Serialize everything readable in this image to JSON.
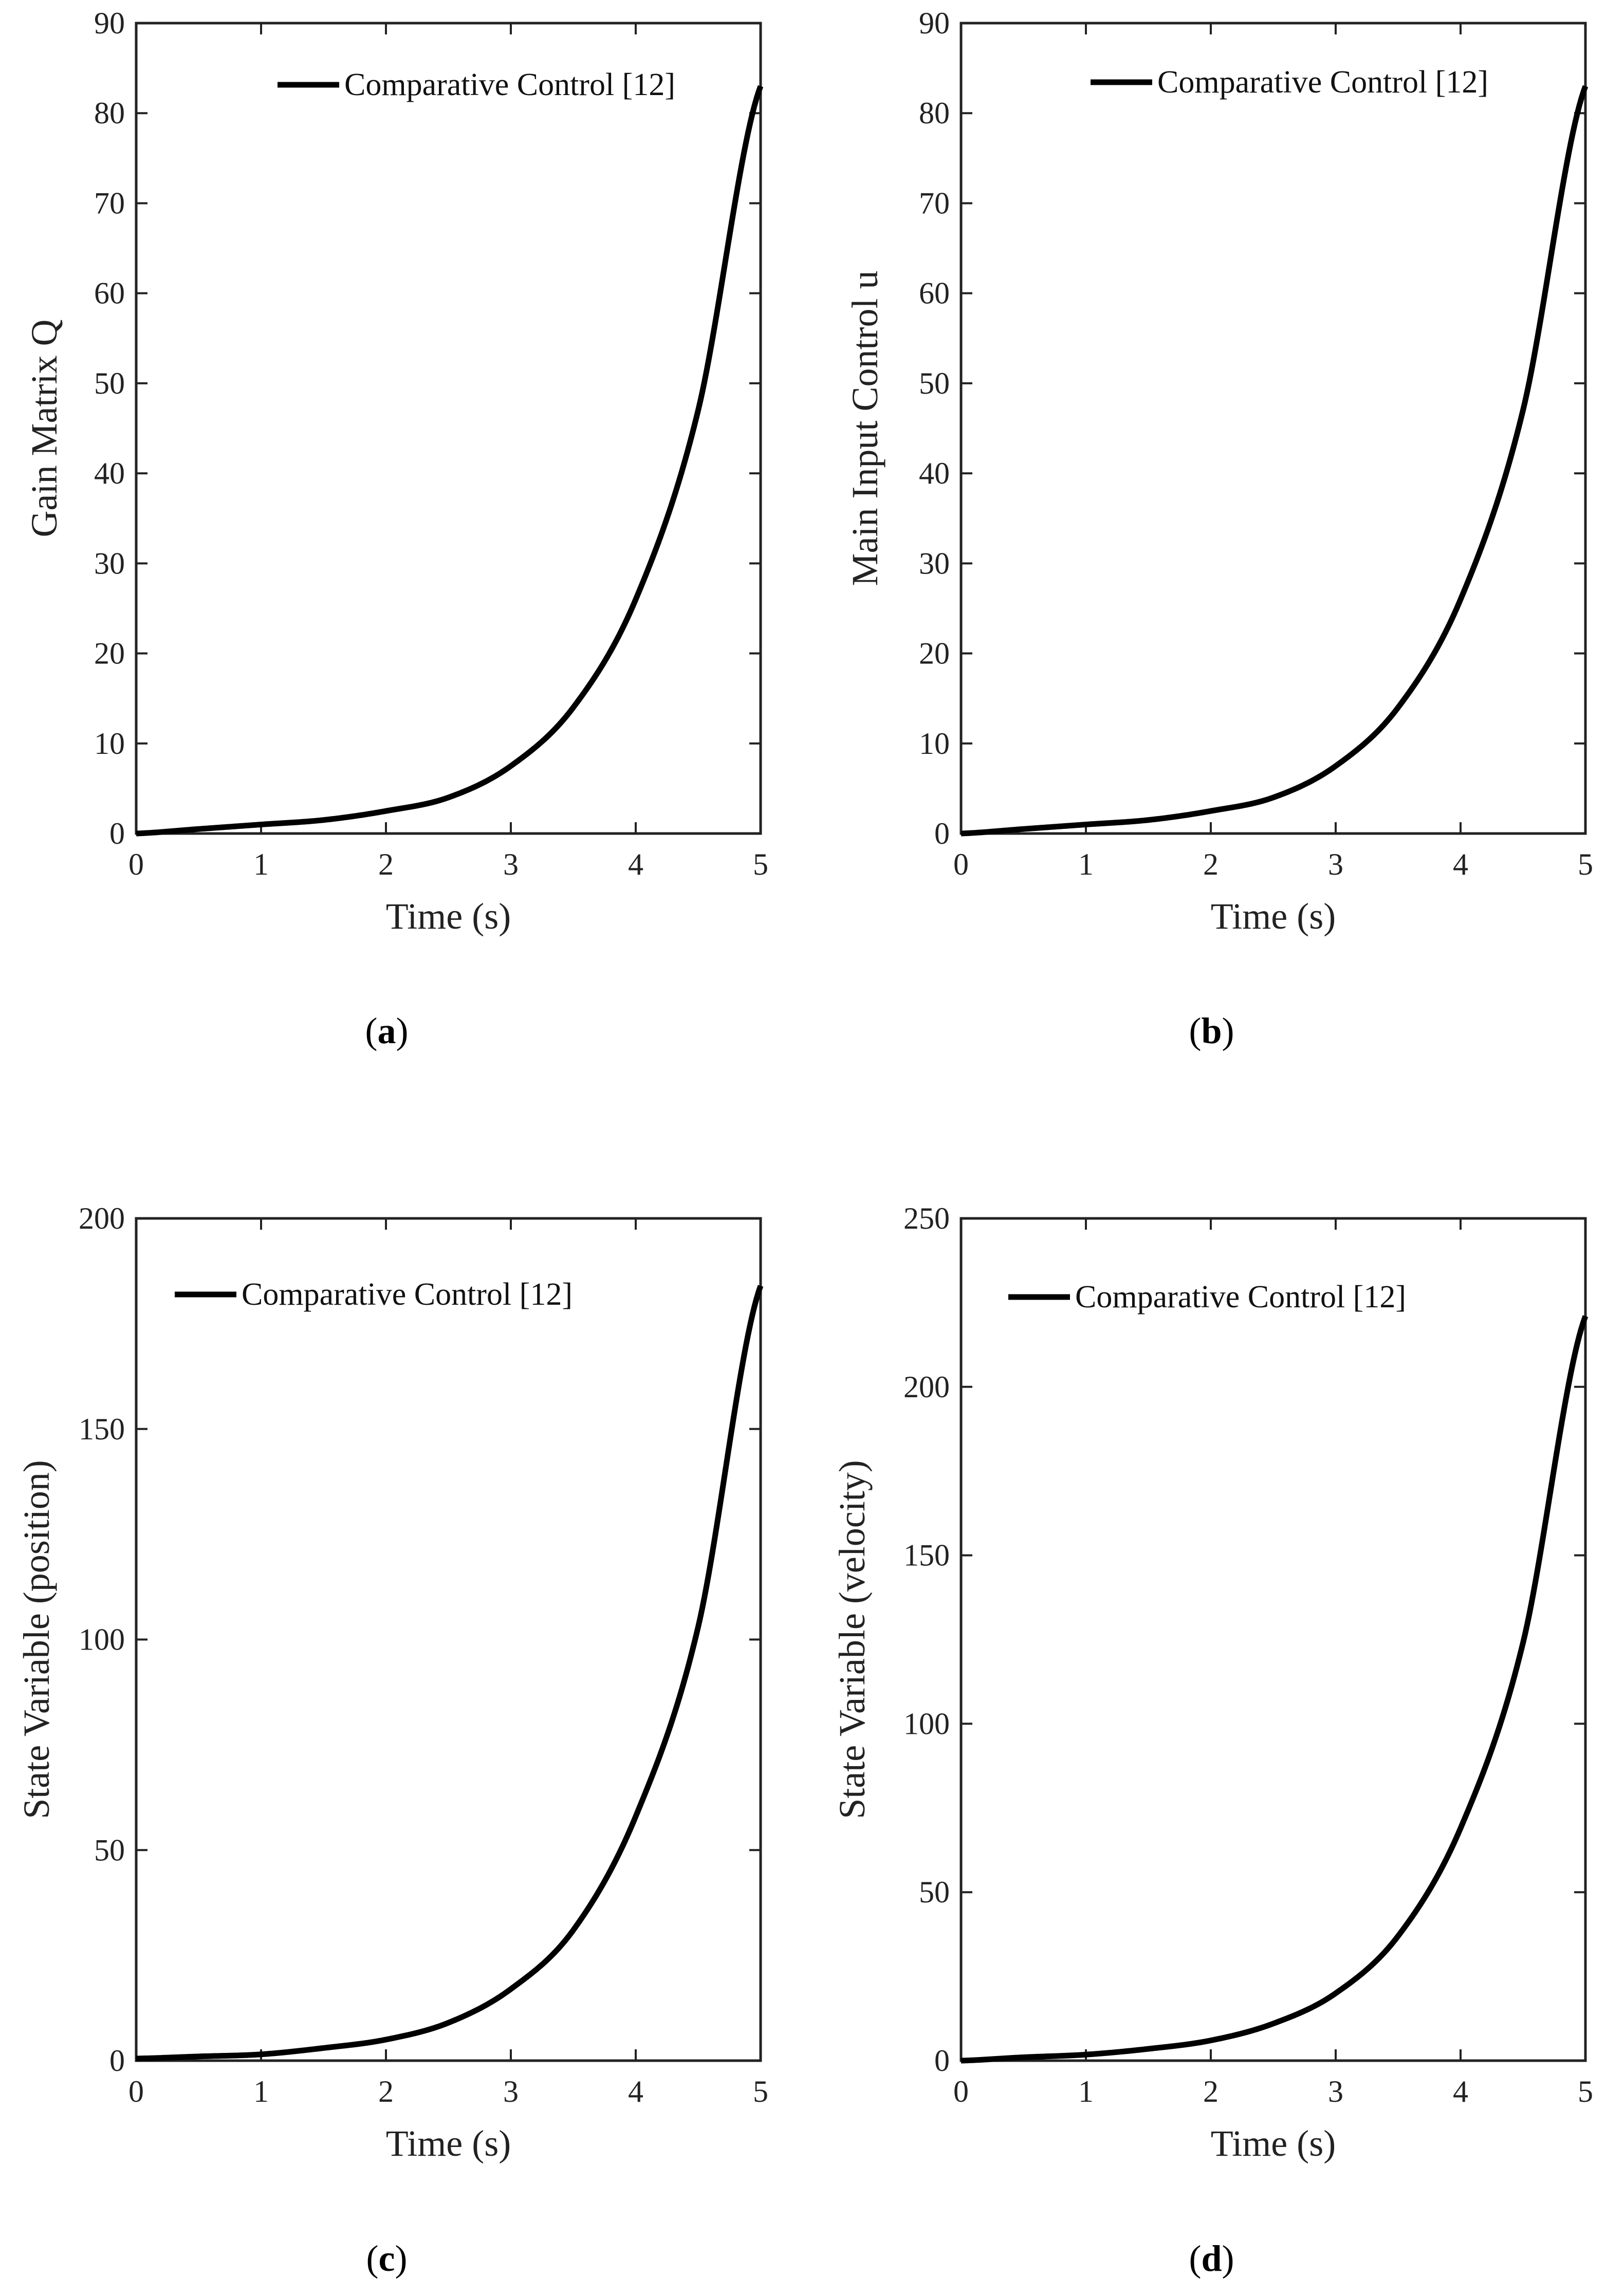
{
  "chart_data": [
    {
      "type": "line",
      "caption_letter": "a",
      "xlabel": "Time (s)",
      "ylabel": "Gain Matrix Q",
      "xlim": [
        0,
        5
      ],
      "ylim": [
        0,
        90
      ],
      "xticks": [
        "0",
        "1",
        "2",
        "3",
        "4",
        "5"
      ],
      "yticks": [
        "0",
        "10",
        "20",
        "30",
        "40",
        "50",
        "60",
        "70",
        "80",
        "90"
      ],
      "legend_position": "top-right",
      "series": [
        {
          "name": "Comparative Control [12]",
          "color": "#000000",
          "x": [
            0,
            0.5,
            1,
            1.5,
            2,
            2.5,
            3,
            3.5,
            4,
            4.5,
            5
          ],
          "y": [
            0,
            0.5,
            1.0,
            1.5,
            2.5,
            4.0,
            7.5,
            14.0,
            26.0,
            47.0,
            83.0
          ]
        }
      ]
    },
    {
      "type": "line",
      "caption_letter": "b",
      "xlabel": "Time (s)",
      "ylabel": "Main Input Control u",
      "xlim": [
        0,
        5
      ],
      "ylim": [
        0,
        90
      ],
      "xticks": [
        "0",
        "1",
        "2",
        "3",
        "4",
        "5"
      ],
      "yticks": [
        "0",
        "10",
        "20",
        "30",
        "40",
        "50",
        "60",
        "70",
        "80",
        "90"
      ],
      "legend_position": "top-right",
      "series": [
        {
          "name": "Comparative Control [12]",
          "color": "#000000",
          "x": [
            0,
            0.5,
            1,
            1.5,
            2,
            2.5,
            3,
            3.5,
            4,
            4.5,
            5
          ],
          "y": [
            0,
            0.5,
            1.0,
            1.5,
            2.5,
            4.0,
            7.5,
            14.0,
            26.0,
            47.0,
            83.0
          ]
        }
      ]
    },
    {
      "type": "line",
      "caption_letter": "c",
      "xlabel": "Time (s)",
      "ylabel": "State Variable (position)",
      "xlim": [
        0,
        5
      ],
      "ylim": [
        0,
        200
      ],
      "xticks": [
        "0",
        "1",
        "2",
        "3",
        "4",
        "5"
      ],
      "yticks": [
        "0",
        "50",
        "100",
        "150",
        "200"
      ],
      "legend_position": "top-left",
      "series": [
        {
          "name": "Comparative Control [12]",
          "color": "#000000",
          "x": [
            0,
            0.5,
            1,
            1.5,
            2,
            2.5,
            3,
            3.5,
            4,
            4.5,
            5
          ],
          "y": [
            0.5,
            1.0,
            1.5,
            3.0,
            5.0,
            9.0,
            17.0,
            31.0,
            58.0,
            103.0,
            184.0
          ]
        }
      ]
    },
    {
      "type": "line",
      "caption_letter": "d",
      "xlabel": "Time (s)",
      "ylabel": "State Variable (velocity)",
      "xlim": [
        0,
        5
      ],
      "ylim": [
        0,
        250
      ],
      "xticks": [
        "0",
        "1",
        "2",
        "3",
        "4",
        "5"
      ],
      "yticks": [
        "0",
        "50",
        "100",
        "150",
        "200",
        "250"
      ],
      "legend_position": "top-right",
      "series": [
        {
          "name": "Comparative Control [12]",
          "color": "#000000",
          "x": [
            0,
            0.5,
            1,
            1.5,
            2,
            2.5,
            3,
            3.5,
            4,
            4.5,
            5
          ],
          "y": [
            0,
            1.0,
            1.8,
            3.5,
            6.0,
            11.0,
            20.0,
            37.0,
            69.0,
            124.0,
            221.0
          ]
        }
      ]
    }
  ]
}
